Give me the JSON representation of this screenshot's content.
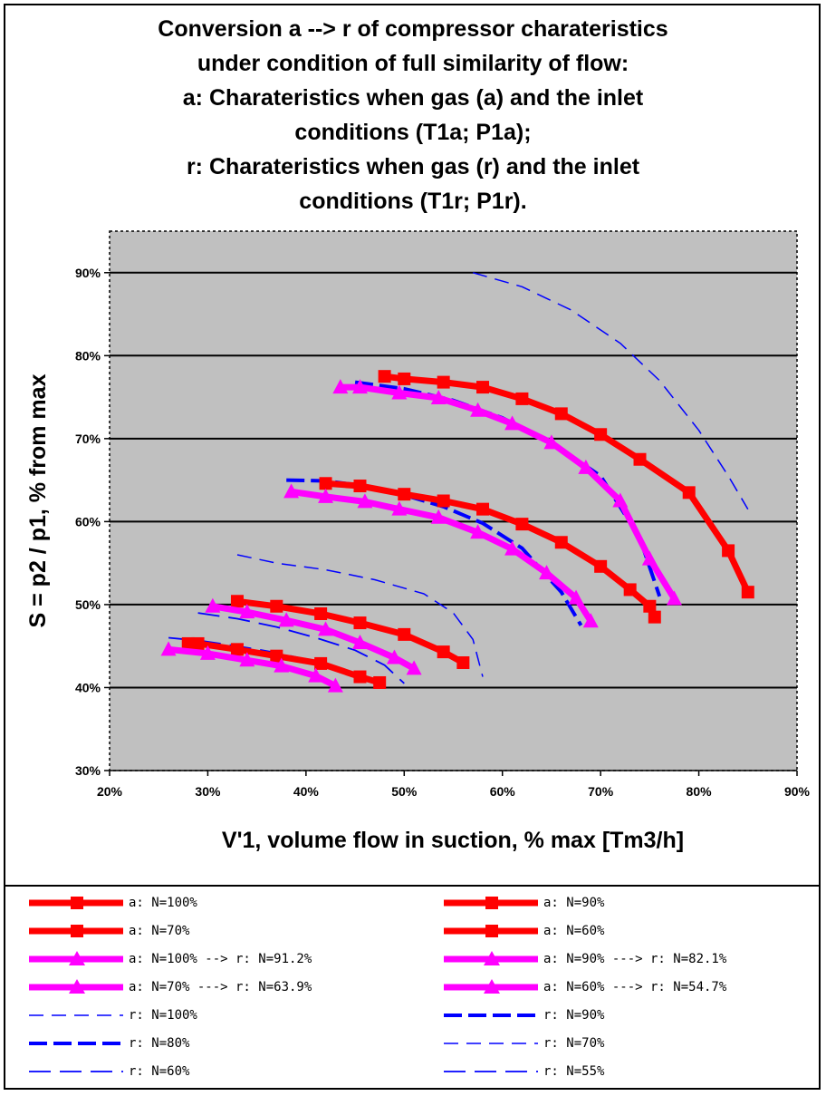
{
  "chart_data": {
    "type": "line",
    "title_lines": [
      "Conversion a --> r of compressor charateristics",
      "under condition of full similarity of flow:",
      "a: Charateristics when gas (a) and the inlet",
      "conditions (T1a; P1a);",
      "r: Charateristics when gas (r) and the inlet",
      "conditions (T1r; P1r)."
    ],
    "xlabel": "V'1, volume flow in suction, % max [Tm3/h]",
    "ylabel": "S = p2 / p1,  % from max",
    "xlim": [
      20,
      90
    ],
    "ylim": [
      30,
      95
    ],
    "xticks": [
      "20%",
      "30%",
      "40%",
      "50%",
      "60%",
      "70%",
      "80%",
      "90%"
    ],
    "yticks": [
      "30%",
      "40%",
      "50%",
      "60%",
      "70%",
      "80%",
      "90%"
    ],
    "plot_background": "#c0c0c0",
    "grid": "horizontal",
    "legend_position": "bottom",
    "series": [
      {
        "name": "a: N=100%",
        "color": "#ff0000",
        "style": "solid-thick",
        "marker": "square",
        "x": [
          48,
          50,
          54,
          58,
          62,
          66,
          70,
          74,
          79,
          83,
          85
        ],
        "y": [
          77.5,
          77.2,
          76.8,
          76.2,
          74.8,
          73,
          70.5,
          67.5,
          63.5,
          56.5,
          51.5
        ]
      },
      {
        "name": "a: N=90%",
        "color": "#ff0000",
        "style": "solid-thick",
        "marker": "square",
        "x": [
          42,
          45.5,
          50,
          54,
          58,
          62,
          66,
          70,
          73,
          75,
          75.5
        ],
        "y": [
          64.6,
          64.3,
          63.3,
          62.5,
          61.5,
          59.7,
          57.5,
          54.6,
          51.8,
          49.8,
          48.5
        ]
      },
      {
        "name": "a: N=70%",
        "color": "#ff0000",
        "style": "solid-thick",
        "marker": "square",
        "x": [
          33,
          37,
          41.5,
          45.5,
          50,
          54,
          56
        ],
        "y": [
          50.4,
          49.8,
          48.9,
          47.8,
          46.4,
          44.3,
          43
        ]
      },
      {
        "name": "a: N=60%",
        "color": "#ff0000",
        "style": "solid-thick",
        "marker": "square",
        "x": [
          28,
          29,
          33,
          37,
          41.5,
          45.5,
          47.5
        ],
        "y": [
          45.3,
          45.3,
          44.6,
          43.8,
          42.9,
          41.3,
          40.6
        ]
      },
      {
        "name": "a: N=100% --> r: N=91.2%",
        "color": "#ff00ff",
        "style": "solid-thick",
        "marker": "triangle",
        "x": [
          43.5,
          45.5,
          49.5,
          53.5,
          57.5,
          61,
          65,
          68.5,
          72,
          75,
          77.5
        ],
        "y": [
          76.2,
          76.2,
          75.5,
          74.9,
          73.4,
          71.8,
          69.5,
          66.5,
          62.5,
          55.5,
          50.7
        ]
      },
      {
        "name": "a: N=90% ---> r: N=82.1%",
        "color": "#ff00ff",
        "style": "solid-thick",
        "marker": "triangle",
        "x": [
          38.5,
          42,
          46,
          49.5,
          53.5,
          57.5,
          61,
          64.5,
          67.5,
          69
        ],
        "y": [
          63.6,
          63,
          62.4,
          61.5,
          60.5,
          58.7,
          56.7,
          53.8,
          50.8,
          48
        ]
      },
      {
        "name": "a: N=70% ---> r: N=63.9%",
        "color": "#ff00ff",
        "style": "solid-thick",
        "marker": "triangle",
        "x": [
          30.5,
          34,
          38,
          42,
          45.5,
          49,
          51
        ],
        "y": [
          49.8,
          49.1,
          48.1,
          47,
          45.4,
          43.6,
          42.3
        ]
      },
      {
        "name": "a: N=60% ---> r: N=54.7%",
        "color": "#ff00ff",
        "style": "solid-thick",
        "marker": "triangle",
        "x": [
          26,
          30,
          34,
          37.5,
          41,
          43
        ],
        "y": [
          44.6,
          44.1,
          43.3,
          42.6,
          41.4,
          40.2
        ]
      },
      {
        "name": "r: N=100%",
        "color": "#0000ff",
        "style": "dash-thin",
        "x": [
          57,
          62,
          67,
          72,
          76,
          80,
          83,
          85
        ],
        "y": [
          90,
          88.3,
          85.5,
          81.5,
          77,
          71,
          65.5,
          61.5
        ]
      },
      {
        "name": "r: N=90%",
        "color": "#0000ff",
        "style": "dash-thick",
        "x": [
          45,
          50,
          55,
          60,
          65,
          70,
          74,
          76
        ],
        "y": [
          76.8,
          76,
          74.6,
          72.5,
          69.5,
          65.5,
          58,
          51
        ]
      },
      {
        "name": "r: N=80%",
        "color": "#0000ff",
        "style": "dash-thick",
        "x": [
          38,
          42,
          46,
          50,
          54,
          58,
          62,
          66,
          68
        ],
        "y": [
          65,
          64.9,
          64.3,
          63.2,
          61.8,
          59.8,
          56.8,
          51.5,
          47.5
        ]
      },
      {
        "name": "r: N=70%",
        "color": "#0000ff",
        "style": "dash-thin",
        "x": [
          33,
          37,
          42,
          47,
          52,
          55,
          57,
          58
        ],
        "y": [
          56,
          55,
          54.2,
          53,
          51.3,
          49,
          45.8,
          41.3
        ]
      },
      {
        "name": "r: N=60%",
        "color": "#0000ff",
        "style": "dash-long",
        "x": [
          29,
          33,
          37,
          41,
          45,
          48,
          50
        ],
        "y": [
          49,
          48.3,
          47.3,
          46,
          44.5,
          42.7,
          40.5
        ]
      },
      {
        "name": "r: N=55%",
        "color": "#0000ff",
        "style": "dash-long",
        "x": [
          26,
          29.5,
          33,
          36.5,
          40,
          43,
          46,
          48
        ],
        "y": [
          46,
          45.6,
          45,
          44.3,
          43.4,
          42.1,
          41,
          40
        ]
      }
    ]
  }
}
